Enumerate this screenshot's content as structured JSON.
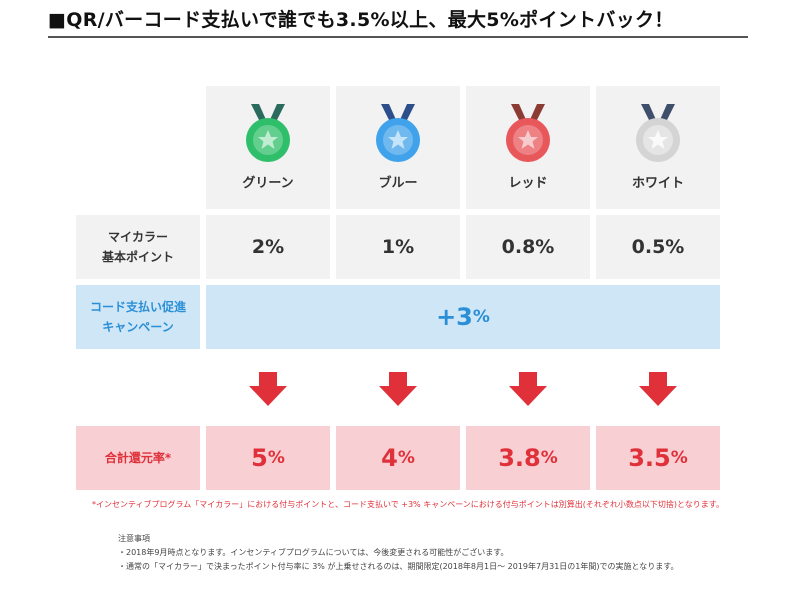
{
  "title": "■QR/バーコード支払いで誰でも3.5%以上、最大5%ポイントバック！",
  "tiers": [
    {
      "name": "グリーン",
      "base": "2%",
      "total_num": "5",
      "total_pct": "%",
      "color": "#2fbf6a",
      "ribbon": "#2a6b5e"
    },
    {
      "name": "ブルー",
      "base": "1%",
      "total_num": "4",
      "total_pct": "%",
      "color": "#3fa2ea",
      "ribbon": "#2c4f8c"
    },
    {
      "name": "レッド",
      "base": "0.8%",
      "total_num": "3.8",
      "total_pct": "%",
      "color": "#e8575a",
      "ribbon": "#8c3a34"
    },
    {
      "name": "ホワイト",
      "base": "0.5%",
      "total_num": "3.5",
      "total_pct": "%",
      "color": "#d4d4d4",
      "ribbon": "#3f4f6b"
    }
  ],
  "rows": {
    "base_label_1": "マイカラー",
    "base_label_2": "基本ポイント",
    "campaign_label_1": "コード支払い促進",
    "campaign_label_2": "キャンペーン",
    "campaign_plus": "+3",
    "campaign_pct": "%",
    "total_label": "合計還元率*"
  },
  "footnote": "*インセンティブプログラム「マイカラー」における付与ポイントと、コード支払いで +3% キャンペーンにおける付与ポイントは別算出(それぞれ小数点以下切捨)となります。",
  "notes": {
    "heading": "注意事項",
    "items": [
      "・2018年9月時点となります。インセンティブプログラムについては、今後変更される可能性がございます。",
      "・通常の「マイカラー」で決まったポイント付与率に 3% が上乗せされるのは、期間限定(2018年8月1日〜 2019年7月31日の1年間)での実施となります。"
    ]
  },
  "colors": {
    "arrow": "#e0313a",
    "blue_bg": "#cfe6f7",
    "pink_bg": "#f8cfd3",
    "gray_bg": "#f2f2f2"
  }
}
